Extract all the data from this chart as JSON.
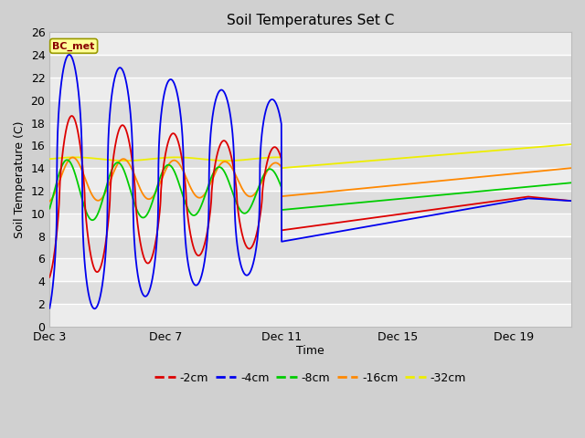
{
  "title": "Soil Temperatures Set C",
  "xlabel": "Time",
  "ylabel": "Soil Temperature (C)",
  "ylim": [
    0,
    26
  ],
  "yticks": [
    0,
    2,
    4,
    6,
    8,
    10,
    12,
    14,
    16,
    18,
    20,
    22,
    24,
    26
  ],
  "bg_outer": "#d0d0d0",
  "bg_inner": "#e8e8e8",
  "band_light": "#ececec",
  "band_dark": "#dedede",
  "legend_label": "BC_met",
  "series_colors": {
    "-2cm": "#dd0000",
    "-4cm": "#0000ee",
    "-8cm": "#00cc00",
    "-16cm": "#ff8800",
    "-32cm": "#eeee00"
  },
  "series_linewidth": 1.3,
  "annotation_box_facecolor": "#ffff99",
  "annotation_box_edgecolor": "#999900",
  "annotation_text_color": "#880000",
  "xlim": [
    3,
    21
  ],
  "xtick_days": [
    3,
    7,
    11,
    15,
    19
  ],
  "xtick_labels": [
    "Dec 3",
    "Dec 7",
    "Dec 11",
    "Dec 15",
    "Dec 19"
  ]
}
